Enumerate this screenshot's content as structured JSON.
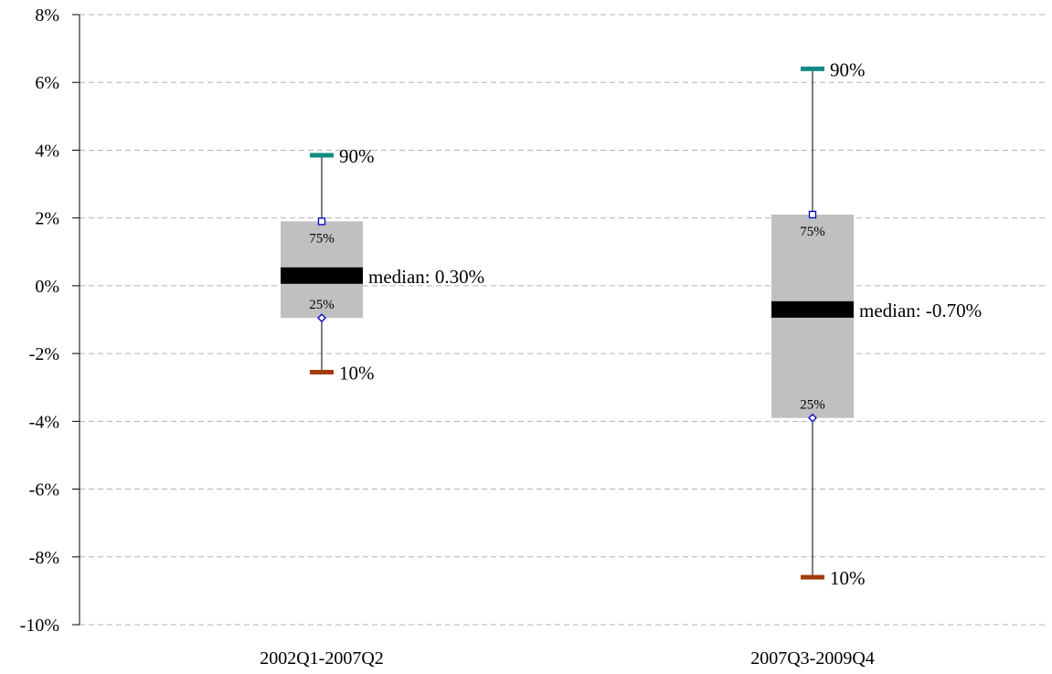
{
  "chart_data": {
    "type": "box",
    "title": "",
    "xlabel": "",
    "ylabel": "",
    "ylim": [
      -10,
      8
    ],
    "y_ticks": [
      8,
      6,
      4,
      2,
      0,
      -2,
      -4,
      -6,
      -8,
      -10
    ],
    "y_tick_labels": [
      "8%",
      "6%",
      "4%",
      "2%",
      "0%",
      "-2%",
      "-4%",
      "-6%",
      "-8%",
      "-10%"
    ],
    "grid": "horizontal-dashed",
    "legend": "none",
    "categories": [
      "2002Q1-2007Q2",
      "2007Q3-2009Q4"
    ],
    "boxes": [
      {
        "p10": -2.55,
        "p25": -0.95,
        "median": 0.3,
        "p75": 1.9,
        "p90": 3.85,
        "p10_label": "10%",
        "p25_label": "25%",
        "median_label": "median: 0.30%",
        "p75_label": "75%",
        "p90_label": "90%"
      },
      {
        "p10": -8.6,
        "p25": -3.9,
        "median": -0.7,
        "p75": 2.1,
        "p90": 6.4,
        "p10_label": "10%",
        "p25_label": "25%",
        "median_label": "median: -0.70%",
        "p75_label": "75%",
        "p90_label": "90%"
      }
    ],
    "colors": {
      "box": "#c0c0c0",
      "median": "#000000",
      "p90_marker": "#138a83",
      "p10_marker": "#a13c0c",
      "quartile_marker": "#0000cc",
      "grid": "#b3b3b3",
      "axis": "#000000"
    }
  }
}
